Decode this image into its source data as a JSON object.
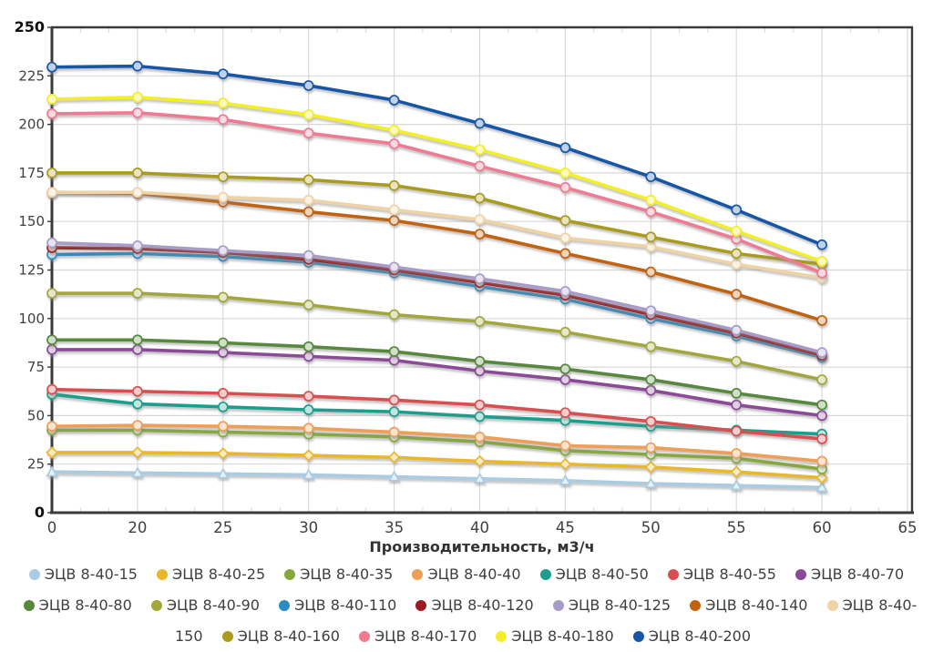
{
  "chart_data": {
    "type": "line",
    "title": "",
    "xlabel": "Производительность, м3/ч",
    "ylabel": "",
    "x_tick_labels": [
      "0",
      "20",
      "25",
      "30",
      "35",
      "40",
      "45",
      "50",
      "55",
      "60",
      "65"
    ],
    "y_ticks": [
      0,
      25,
      50,
      75,
      100,
      125,
      150,
      175,
      200,
      225,
      250
    ],
    "ylim": [
      0,
      250
    ],
    "grid": true,
    "legend_position": "bottom",
    "categories": [
      0,
      20,
      25,
      30,
      35,
      40,
      45,
      50,
      55,
      60
    ],
    "palette": {
      "background": "#ffffff",
      "grid_color": "#d9d9d9",
      "axis_color": "#3a3a3a",
      "tick_label_color": "#3f3f3f",
      "bold_tick_label_color": "#111111",
      "axis_title_color": "#333333",
      "legend_text_color": "#3f3f3f"
    },
    "series": [
      {
        "name": "ЭЦВ 8-40-15",
        "color": "#a9cce3",
        "marker": "triangle",
        "values": [
          21,
          20.5,
          20,
          19.5,
          18.5,
          17.5,
          16.5,
          15,
          14,
          13
        ]
      },
      {
        "name": "ЭЦВ 8-40-25",
        "color": "#eab729",
        "marker": "diamond",
        "values": [
          31,
          31,
          30.5,
          29.5,
          28.5,
          26.5,
          25,
          23.5,
          21,
          18
        ]
      },
      {
        "name": "ЭЦВ 8-40-35",
        "color": "#86a93e",
        "marker": "circle",
        "values": [
          42.5,
          42.5,
          41.5,
          40.5,
          39,
          36.5,
          32,
          30,
          28,
          22.5
        ]
      },
      {
        "name": "ЭЦВ 8-40-40",
        "color": "#ef9e57",
        "marker": "circle",
        "values": [
          44.5,
          45,
          44.5,
          43.5,
          41.5,
          39,
          34.5,
          33.5,
          30.5,
          26.5
        ]
      },
      {
        "name": "ЭЦВ 8-40-50",
        "color": "#1b9e8e",
        "marker": "circle",
        "values": [
          61,
          56,
          54.5,
          53,
          52,
          49.5,
          47.5,
          44.5,
          42.5,
          40.5
        ]
      },
      {
        "name": "ЭЦВ 8-40-55",
        "color": "#d94f4f",
        "marker": "circle",
        "values": [
          63.5,
          62.5,
          61.5,
          60,
          58,
          55.5,
          51.5,
          47,
          42,
          38
        ]
      },
      {
        "name": "ЭЦВ 8-40-70",
        "color": "#8b4a97",
        "marker": "circle",
        "values": [
          84,
          84,
          82.5,
          80.5,
          78.5,
          73,
          68.5,
          63,
          55.5,
          50
        ]
      },
      {
        "name": "ЭЦВ 8-40-80",
        "color": "#56883c",
        "marker": "circle",
        "values": [
          89,
          89,
          87.5,
          85.5,
          83,
          78,
          74,
          68.5,
          61.5,
          55.5
        ]
      },
      {
        "name": "ЭЦВ 8-40-90",
        "color": "#a3a73a",
        "marker": "circle",
        "values": [
          113,
          113,
          111,
          107,
          102,
          98.5,
          93,
          85.5,
          78,
          68.5
        ]
      },
      {
        "name": "ЭЦВ 8-40-110",
        "color": "#2e8bc0",
        "marker": "circle",
        "values": [
          133,
          133.5,
          132,
          129,
          123.5,
          116.5,
          110,
          100,
          91,
          80
        ]
      },
      {
        "name": "ЭЦВ 8-40-120",
        "color": "#9e1a22",
        "marker": "circle",
        "values": [
          136.5,
          136,
          134,
          130.5,
          125,
          118.5,
          112,
          102,
          92.5,
          81
        ]
      },
      {
        "name": "ЭЦВ 8-40-125",
        "color": "#a79cc8",
        "marker": "circle",
        "values": [
          139,
          137.5,
          135,
          132.5,
          126.5,
          120.5,
          114,
          104,
          94,
          82.5
        ]
      },
      {
        "name": "ЭЦВ 8-40-140",
        "color": "#c2620f",
        "marker": "circle",
        "values": [
          165,
          164.5,
          160,
          155,
          150.5,
          143.5,
          133.5,
          124,
          112.5,
          99
        ]
      },
      {
        "name": "ЭЦВ 8-40-150",
        "color": "#f0d3a4",
        "marker": "circle",
        "values": [
          165,
          165,
          162.5,
          161,
          156,
          151,
          141.5,
          137,
          128,
          121
        ]
      },
      {
        "name": "ЭЦВ 8-40-160",
        "color": "#ab9b1e",
        "marker": "circle",
        "values": [
          175,
          175,
          173,
          171.5,
          168.5,
          162,
          150.5,
          142,
          133.5,
          128
        ]
      },
      {
        "name": "ЭЦВ 8-40-170",
        "color": "#f07a92",
        "marker": "circle",
        "values": [
          205.5,
          206,
          202.5,
          195.5,
          190,
          178.5,
          167.5,
          155,
          141,
          123.5
        ]
      },
      {
        "name": "ЭЦВ 8-40-180",
        "color": "#f4ee26",
        "marker": "circle",
        "values": [
          213,
          214,
          211,
          205,
          197,
          187,
          175,
          161,
          145,
          129.5
        ]
      },
      {
        "name": "ЭЦВ 8-40-200",
        "color": "#1857a8",
        "marker": "circle",
        "values": [
          229.5,
          230,
          226,
          220,
          212.5,
          200.5,
          188,
          173,
          156,
          138
        ]
      }
    ]
  }
}
